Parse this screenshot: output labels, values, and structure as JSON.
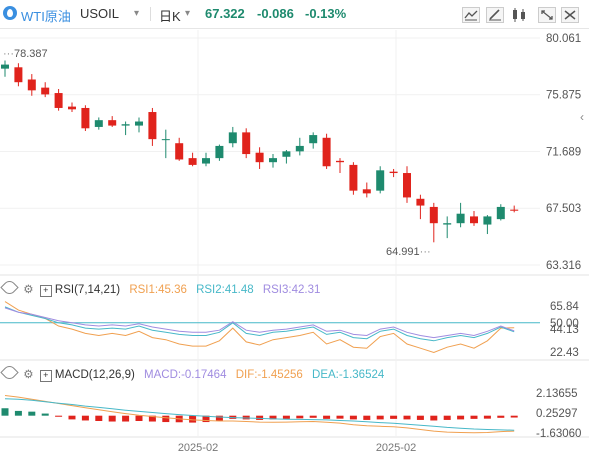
{
  "header": {
    "symbol_name": "WTI原油",
    "symbol_code": "USOIL",
    "dropdown_caret": "▾",
    "period": "日K",
    "price": "67.322",
    "change": "-0.086",
    "change_pct": "-0.13%"
  },
  "icons": [
    "oil-drop-icon",
    "indicator-icon",
    "draw-icon",
    "candle-type-icon",
    "fullscreen-icon",
    "settings-icon",
    "collapse-arrow-icon"
  ],
  "colors": {
    "up": "#1e8a6e",
    "down": "#e0231c",
    "rsi1": "#f0a050",
    "rsi2": "#47b8c8",
    "rsi3": "#a08ce0",
    "macd": "#a08ce0",
    "dif": "#f0a050",
    "dea": "#47b8c8",
    "accent": "#3a8fe0"
  },
  "main": {
    "y_ticks": [
      "80.061",
      "75.875",
      "71.689",
      "67.503",
      "63.316"
    ],
    "high_label": "78.387",
    "low_label": "64.991"
  },
  "rsi": {
    "title": "RSI(7,14,21)",
    "rsi1": "RSI1:45.36",
    "rsi2": "RSI2:41.48",
    "rsi3": "RSI3:42.31",
    "y_ticks": [
      "65.84",
      "50.00",
      "44.13",
      "22.43"
    ]
  },
  "macd": {
    "title": "MACD(12,26,9)",
    "macd": "MACD:-0.17464",
    "dif": "DIF:-1.45256",
    "dea": "DEA:-1.36524",
    "y_ticks": [
      "2.13655",
      "0.25297",
      "-1.63060"
    ]
  },
  "x_ticks": [
    "2025-02",
    "2025-02"
  ],
  "chart_data": {
    "type": "candlestick",
    "ylim": [
      63.316,
      80.061
    ],
    "candles": [
      {
        "o": 77.8,
        "h": 78.4,
        "l": 77.2,
        "c": 78.1
      },
      {
        "o": 77.9,
        "h": 78.2,
        "l": 76.5,
        "c": 76.8
      },
      {
        "o": 77.0,
        "h": 77.4,
        "l": 75.8,
        "c": 76.2
      },
      {
        "o": 76.4,
        "h": 76.8,
        "l": 75.7,
        "c": 75.9
      },
      {
        "o": 76.0,
        "h": 76.3,
        "l": 74.7,
        "c": 74.9
      },
      {
        "o": 75.0,
        "h": 75.3,
        "l": 74.6,
        "c": 74.8
      },
      {
        "o": 74.9,
        "h": 75.1,
        "l": 73.2,
        "c": 73.4
      },
      {
        "o": 73.5,
        "h": 74.2,
        "l": 73.3,
        "c": 74.0
      },
      {
        "o": 74.0,
        "h": 74.3,
        "l": 73.5,
        "c": 73.6
      },
      {
        "o": 73.6,
        "h": 73.9,
        "l": 72.9,
        "c": 73.7
      },
      {
        "o": 73.6,
        "h": 74.2,
        "l": 73.1,
        "c": 73.9
      },
      {
        "o": 74.6,
        "h": 74.9,
        "l": 72.1,
        "c": 72.6
      },
      {
        "o": 72.6,
        "h": 73.3,
        "l": 71.2,
        "c": 72.6
      },
      {
        "o": 72.3,
        "h": 72.7,
        "l": 71.0,
        "c": 71.1
      },
      {
        "o": 71.2,
        "h": 71.6,
        "l": 70.6,
        "c": 70.7
      },
      {
        "o": 70.8,
        "h": 71.6,
        "l": 70.6,
        "c": 71.2
      },
      {
        "o": 71.2,
        "h": 72.2,
        "l": 71.0,
        "c": 72.1
      },
      {
        "o": 72.3,
        "h": 73.5,
        "l": 72.0,
        "c": 73.1
      },
      {
        "o": 73.1,
        "h": 73.4,
        "l": 71.2,
        "c": 71.5
      },
      {
        "o": 71.6,
        "h": 72.0,
        "l": 70.4,
        "c": 70.9
      },
      {
        "o": 70.9,
        "h": 71.5,
        "l": 70.5,
        "c": 71.2
      },
      {
        "o": 71.3,
        "h": 71.8,
        "l": 70.8,
        "c": 71.7
      },
      {
        "o": 71.7,
        "h": 72.7,
        "l": 71.4,
        "c": 72.1
      },
      {
        "o": 72.3,
        "h": 73.1,
        "l": 71.9,
        "c": 72.9
      },
      {
        "o": 72.7,
        "h": 73.0,
        "l": 70.4,
        "c": 70.6
      },
      {
        "o": 71.0,
        "h": 71.2,
        "l": 70.1,
        "c": 70.9
      },
      {
        "o": 70.7,
        "h": 70.9,
        "l": 68.5,
        "c": 68.8
      },
      {
        "o": 68.9,
        "h": 69.4,
        "l": 68.3,
        "c": 68.6
      },
      {
        "o": 68.8,
        "h": 70.6,
        "l": 68.6,
        "c": 70.3
      },
      {
        "o": 70.2,
        "h": 70.4,
        "l": 69.8,
        "c": 70.1
      },
      {
        "o": 70.1,
        "h": 70.6,
        "l": 67.9,
        "c": 68.3
      },
      {
        "o": 68.2,
        "h": 68.5,
        "l": 66.7,
        "c": 67.7
      },
      {
        "o": 67.6,
        "h": 67.9,
        "l": 64.99,
        "c": 66.4
      },
      {
        "o": 66.3,
        "h": 66.9,
        "l": 65.3,
        "c": 66.4
      },
      {
        "o": 66.4,
        "h": 67.9,
        "l": 66.1,
        "c": 67.1
      },
      {
        "o": 66.9,
        "h": 67.3,
        "l": 66.2,
        "c": 66.4
      },
      {
        "o": 66.3,
        "h": 67.0,
        "l": 65.6,
        "c": 66.9
      },
      {
        "o": 66.7,
        "h": 67.8,
        "l": 66.6,
        "c": 67.6
      },
      {
        "o": 67.4,
        "h": 67.7,
        "l": 67.2,
        "c": 67.32
      }
    ],
    "rsi": {
      "ylim": [
        22.43,
        65.84
      ],
      "rsi1": [
        70,
        62,
        58,
        54,
        47,
        44,
        40,
        38,
        40,
        38,
        42,
        36,
        34,
        30,
        28,
        28,
        33,
        45,
        32,
        29,
        34,
        36,
        38,
        41,
        30,
        34,
        27,
        26,
        37,
        40,
        30,
        26,
        22,
        27,
        30,
        26,
        33,
        45,
        45.36
      ],
      "rsi2": [
        65,
        60,
        57,
        54,
        50,
        48,
        45,
        44,
        45,
        44,
        47,
        43,
        41,
        39,
        38,
        38,
        41,
        50,
        40,
        38,
        41,
        42,
        44,
        46,
        39,
        41,
        36,
        35,
        42,
        44,
        38,
        35,
        33,
        36,
        38,
        36,
        40,
        46,
        41.48
      ],
      "rsi3": [
        64,
        60,
        58,
        55,
        52,
        50,
        48,
        47,
        48,
        47,
        49,
        46,
        44,
        42,
        41,
        41,
        43,
        51,
        43,
        41,
        43,
        44,
        46,
        48,
        42,
        43,
        39,
        38,
        44,
        46,
        41,
        38,
        36,
        38,
        40,
        38,
        42,
        47,
        42.31
      ]
    },
    "macd": {
      "ylim": [
        -1.6306,
        2.13655
      ],
      "hist": [
        0.7,
        0.45,
        0.38,
        0.2,
        -0.1,
        -0.35,
        -0.45,
        -0.5,
        -0.55,
        -0.55,
        -0.5,
        -0.55,
        -0.6,
        -0.62,
        -0.65,
        -0.6,
        -0.5,
        -0.3,
        -0.35,
        -0.4,
        -0.35,
        -0.3,
        -0.25,
        -0.2,
        -0.3,
        -0.28,
        -0.35,
        -0.4,
        -0.35,
        -0.3,
        -0.35,
        -0.4,
        -0.45,
        -0.4,
        -0.35,
        -0.3,
        -0.28,
        -0.2,
        -0.17464
      ],
      "dif": [
        1.9,
        1.75,
        1.55,
        1.35,
        1.15,
        0.95,
        0.75,
        0.55,
        0.38,
        0.2,
        0.05,
        -0.08,
        -0.2,
        -0.3,
        -0.4,
        -0.45,
        -0.5,
        -0.5,
        -0.55,
        -0.6,
        -0.62,
        -0.6,
        -0.58,
        -0.55,
        -0.62,
        -0.7,
        -0.85,
        -0.95,
        -1.0,
        -1.05,
        -1.15,
        -1.3,
        -1.45,
        -1.55,
        -1.58,
        -1.6,
        -1.58,
        -1.5,
        -1.45256
      ],
      "dea": [
        1.6,
        1.55,
        1.45,
        1.32,
        1.18,
        1.05,
        0.9,
        0.78,
        0.65,
        0.52,
        0.4,
        0.3,
        0.2,
        0.1,
        0.02,
        -0.05,
        -0.12,
        -0.18,
        -0.22,
        -0.26,
        -0.3,
        -0.33,
        -0.35,
        -0.37,
        -0.4,
        -0.45,
        -0.5,
        -0.58,
        -0.65,
        -0.72,
        -0.8,
        -0.9,
        -1.0,
        -1.1,
        -1.18,
        -1.25,
        -1.3,
        -1.34,
        -1.36524
      ]
    }
  }
}
